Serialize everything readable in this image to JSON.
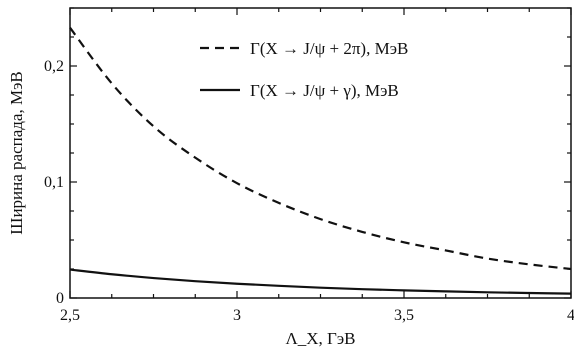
{
  "chart_data": {
    "type": "line",
    "title": "",
    "xlabel": "Λ_X, ГэВ",
    "ylabel": "Ширина распада, МэВ",
    "xlim": [
      2.5,
      4.0
    ],
    "ylim": [
      0,
      0.25
    ],
    "x_ticks": [
      {
        "value": 2.5,
        "label": "2,5"
      },
      {
        "value": 3.0,
        "label": "3"
      },
      {
        "value": 3.5,
        "label": "3,5"
      },
      {
        "value": 4.0,
        "label": "4"
      }
    ],
    "y_ticks": [
      {
        "value": 0,
        "label": "0"
      },
      {
        "value": 0.1,
        "label": "0,1"
      },
      {
        "value": 0.2,
        "label": "0,2"
      }
    ],
    "grid": false,
    "legend_position": "top-right",
    "x": [
      2.5,
      2.625,
      2.75,
      2.875,
      3.0,
      3.125,
      3.25,
      3.375,
      3.5,
      3.625,
      3.75,
      3.875,
      4.0
    ],
    "series": [
      {
        "name": "Γ(X → J/ψ + 2π), МэВ",
        "style": "dashed",
        "color": "#111111",
        "values": [
          0.233,
          0.185,
          0.148,
          0.121,
          0.099,
          0.082,
          0.068,
          0.057,
          0.048,
          0.041,
          0.034,
          0.029,
          0.025
        ]
      },
      {
        "name": "Γ(X → J/ψ + γ), МэВ",
        "style": "solid",
        "color": "#111111",
        "values": [
          0.0245,
          0.0205,
          0.0172,
          0.0145,
          0.0123,
          0.0105,
          0.0089,
          0.0076,
          0.0066,
          0.0057,
          0.0049,
          0.0043,
          0.0038
        ]
      }
    ]
  }
}
